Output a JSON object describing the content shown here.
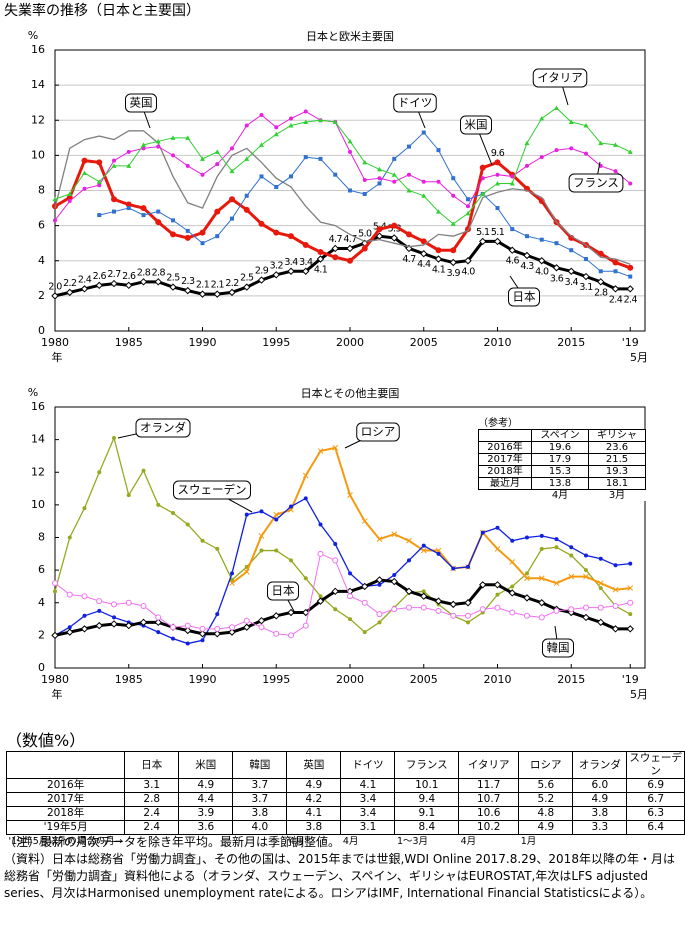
{
  "title": "失業率の推移（日本と主要国）",
  "chart_data": [
    {
      "type": "line",
      "title": "日本と欧米主要国",
      "y_label": "%",
      "x_label": "年",
      "x_note": "5月",
      "x": [
        1980,
        1981,
        1982,
        1983,
        1984,
        1985,
        1986,
        1987,
        1988,
        1989,
        1990,
        1991,
        1992,
        1993,
        1994,
        1995,
        1996,
        1997,
        1998,
        1999,
        2000,
        2001,
        2002,
        2003,
        2004,
        2005,
        2006,
        2007,
        2008,
        2009,
        2010,
        2011,
        2012,
        2013,
        2014,
        2015,
        2016,
        2017,
        2018,
        2019
      ],
      "xlim": [
        1980,
        2020
      ],
      "xticks": [
        1980,
        1985,
        1990,
        1995,
        2000,
        2005,
        2010,
        2015,
        {
          "value": 2019,
          "label": "'19"
        }
      ],
      "ylim": [
        0,
        16
      ],
      "yticks": [
        0,
        2,
        4,
        6,
        8,
        10,
        12,
        14,
        16
      ],
      "grid": true,
      "series": [
        {
          "name": "日本",
          "color": "#000000",
          "width": 3,
          "marker": "diamond",
          "values": [
            2.0,
            2.2,
            2.4,
            2.6,
            2.7,
            2.6,
            2.8,
            2.8,
            2.5,
            2.3,
            2.1,
            2.1,
            2.2,
            2.5,
            2.9,
            3.2,
            3.4,
            3.4,
            4.1,
            4.7,
            4.7,
            5.0,
            5.4,
            5.3,
            4.7,
            4.4,
            4.1,
            3.9,
            4.0,
            5.1,
            5.1,
            4.6,
            4.3,
            4.0,
            3.6,
            3.4,
            3.1,
            2.8,
            2.4,
            2.4
          ],
          "value_labels": [
            "2.0",
            "2.2",
            "2.4",
            "2.6",
            "2.7",
            "2.6",
            "2.8",
            "2.8",
            "2.5",
            "2.3",
            "2.1",
            "2.1",
            "2.2",
            "2.5",
            "2.9",
            "3.2",
            "3.4",
            "3.4",
            "4.1",
            "4.7",
            "4.7",
            "5.0",
            "5.4",
            "5.3",
            "4.7",
            "4.4",
            "4.1",
            "3.9",
            "4.0",
            "5.1",
            "5.1",
            "4.6",
            "4.3",
            "4.0",
            "3.6",
            "3.4",
            "3.1",
            "2.8",
            "2.4",
            "2.4"
          ]
        },
        {
          "name": "米国",
          "color": "#e8180c",
          "width": 3,
          "marker": "circle",
          "values": [
            7.1,
            7.6,
            9.7,
            9.6,
            7.5,
            7.2,
            7.0,
            6.2,
            5.5,
            5.3,
            5.6,
            6.8,
            7.5,
            6.9,
            6.1,
            5.6,
            5.4,
            4.9,
            4.5,
            4.2,
            4.0,
            4.7,
            5.8,
            6.0,
            5.5,
            5.1,
            4.6,
            4.6,
            5.8,
            9.3,
            9.6,
            8.9,
            8.1,
            7.4,
            6.2,
            5.3,
            4.9,
            4.4,
            3.9,
            3.6
          ],
          "value_labels": [
            null,
            null,
            null,
            null,
            null,
            null,
            null,
            null,
            null,
            null,
            null,
            null,
            null,
            null,
            null,
            null,
            null,
            null,
            null,
            null,
            null,
            null,
            null,
            null,
            null,
            null,
            null,
            null,
            null,
            null,
            "9.6",
            null,
            null,
            null,
            null,
            null,
            null,
            null,
            null,
            null
          ]
        },
        {
          "name": "英国",
          "color": "#808080",
          "width": 1.3,
          "marker": "none",
          "values": [
            7.0,
            10.4,
            10.9,
            11.1,
            10.9,
            11.4,
            11.4,
            10.7,
            8.8,
            7.3,
            7.0,
            8.8,
            10.0,
            10.4,
            9.6,
            8.7,
            8.2,
            7.1,
            6.2,
            6.0,
            5.5,
            5.1,
            5.2,
            5.0,
            4.8,
            4.9,
            5.5,
            5.4,
            5.7,
            7.6,
            7.9,
            8.1,
            8.0,
            7.6,
            6.2,
            5.4,
            4.9,
            4.2,
            4.1,
            3.8
          ]
        },
        {
          "name": "ドイツ",
          "color": "#3070d0",
          "width": 1,
          "marker": "square",
          "values": [
            null,
            null,
            null,
            6.6,
            6.8,
            7.0,
            6.6,
            6.8,
            6.3,
            5.7,
            5.0,
            5.4,
            6.4,
            7.7,
            8.8,
            8.2,
            8.8,
            9.9,
            9.8,
            8.9,
            8.0,
            7.8,
            8.4,
            9.8,
            10.5,
            11.3,
            10.3,
            8.7,
            7.5,
            7.8,
            7.0,
            5.8,
            5.4,
            5.2,
            5.0,
            4.6,
            4.1,
            3.4,
            3.4,
            3.1
          ]
        },
        {
          "name": "フランス",
          "color": "#e820e0",
          "width": 1,
          "marker": "circle",
          "values": [
            6.3,
            7.4,
            8.1,
            8.3,
            9.7,
            10.2,
            10.4,
            10.5,
            10.0,
            9.4,
            8.9,
            9.5,
            10.4,
            11.7,
            12.3,
            11.6,
            12.1,
            12.5,
            12.0,
            11.9,
            10.2,
            8.6,
            8.7,
            8.5,
            8.9,
            8.5,
            8.5,
            7.7,
            7.1,
            8.7,
            8.9,
            8.8,
            9.4,
            9.9,
            10.3,
            10.4,
            10.1,
            9.4,
            9.1,
            8.4
          ]
        },
        {
          "name": "イタリア",
          "color": "#30d030",
          "width": 1,
          "marker": "triangle",
          "values": [
            7.5,
            7.8,
            9.0,
            8.5,
            9.4,
            9.4,
            10.6,
            10.8,
            11.0,
            11.0,
            9.8,
            10.2,
            9.1,
            9.8,
            10.6,
            11.2,
            11.7,
            11.9,
            12.0,
            11.9,
            10.8,
            9.6,
            9.2,
            8.9,
            8.0,
            7.7,
            6.8,
            6.1,
            6.7,
            7.8,
            8.4,
            8.4,
            10.7,
            12.1,
            12.7,
            11.9,
            11.7,
            10.7,
            10.6,
            10.2
          ]
        }
      ]
    },
    {
      "type": "line",
      "title": "日本とその他主要国",
      "y_label": "%",
      "x_label": "年",
      "x_note": "5月",
      "x": [
        1980,
        1981,
        1982,
        1983,
        1984,
        1985,
        1986,
        1987,
        1988,
        1989,
        1990,
        1991,
        1992,
        1993,
        1994,
        1995,
        1996,
        1997,
        1998,
        1999,
        2000,
        2001,
        2002,
        2003,
        2004,
        2005,
        2006,
        2007,
        2008,
        2009,
        2010,
        2011,
        2012,
        2013,
        2014,
        2015,
        2016,
        2017,
        2018,
        2019
      ],
      "xlim": [
        1980,
        2020
      ],
      "xticks": [
        1980,
        1985,
        1990,
        1995,
        2000,
        2005,
        2010,
        2015,
        {
          "value": 2019,
          "label": "'19"
        }
      ],
      "ylim": [
        0,
        16
      ],
      "yticks": [
        0,
        2,
        4,
        6,
        8,
        10,
        12,
        14,
        16
      ],
      "grid": false,
      "series": [
        {
          "name": "オランダ",
          "color": "#98a820",
          "width": 1.3,
          "marker": "circle",
          "values": [
            4.7,
            8.0,
            9.8,
            12.0,
            14.1,
            10.6,
            12.1,
            10.0,
            9.5,
            8.8,
            7.8,
            7.3,
            5.4,
            6.2,
            7.2,
            7.2,
            6.6,
            5.5,
            4.4,
            3.6,
            3.0,
            2.2,
            2.8,
            3.7,
            4.6,
            4.7,
            3.9,
            3.2,
            2.8,
            3.4,
            4.5,
            5.0,
            5.8,
            7.3,
            7.4,
            6.9,
            6.0,
            4.9,
            3.8,
            3.3
          ]
        },
        {
          "name": "ロシア",
          "color": "#f59a10",
          "width": 2,
          "marker": "cross",
          "values": [
            null,
            null,
            null,
            null,
            null,
            null,
            null,
            null,
            null,
            null,
            null,
            null,
            5.2,
            5.9,
            8.1,
            9.4,
            9.7,
            11.8,
            13.3,
            13.5,
            10.6,
            9.0,
            7.9,
            8.2,
            7.8,
            7.2,
            7.2,
            6.1,
            6.2,
            8.3,
            7.3,
            6.5,
            5.5,
            5.5,
            5.2,
            5.6,
            5.6,
            5.2,
            4.8,
            4.9
          ]
        },
        {
          "name": "スウェーデン",
          "color": "#1020e0",
          "width": 1.3,
          "marker": "circle",
          "values": [
            2.0,
            2.5,
            3.2,
            3.5,
            3.1,
            2.8,
            2.6,
            2.2,
            1.8,
            1.5,
            1.7,
            3.3,
            5.8,
            9.4,
            9.6,
            9.1,
            9.9,
            10.4,
            8.8,
            7.6,
            5.8,
            5.0,
            5.1,
            5.7,
            6.6,
            7.5,
            7.0,
            6.1,
            6.2,
            8.3,
            8.6,
            7.8,
            8.0,
            8.1,
            7.9,
            7.4,
            6.9,
            6.7,
            6.3,
            6.4
          ]
        },
        {
          "name": "日本",
          "color": "#000000",
          "width": 3,
          "marker": "diamond",
          "values": [
            2.0,
            2.2,
            2.4,
            2.6,
            2.7,
            2.6,
            2.8,
            2.8,
            2.5,
            2.3,
            2.1,
            2.1,
            2.2,
            2.5,
            2.9,
            3.2,
            3.4,
            3.4,
            4.1,
            4.7,
            4.7,
            5.0,
            5.4,
            5.3,
            4.7,
            4.4,
            4.1,
            3.9,
            4.0,
            5.1,
            5.1,
            4.6,
            4.3,
            4.0,
            3.6,
            3.4,
            3.1,
            2.8,
            2.4,
            2.4
          ]
        },
        {
          "name": "韓国",
          "color": "#f070f0",
          "width": 1,
          "marker": "open-circle",
          "values": [
            5.2,
            4.5,
            4.4,
            4.1,
            3.9,
            4.0,
            3.8,
            3.1,
            2.5,
            2.6,
            2.4,
            2.4,
            2.5,
            2.9,
            2.5,
            2.1,
            2.0,
            2.6,
            7.0,
            6.6,
            4.4,
            4.0,
            3.3,
            3.6,
            3.7,
            3.7,
            3.5,
            3.2,
            3.2,
            3.6,
            3.7,
            3.4,
            3.2,
            3.1,
            3.5,
            3.6,
            3.7,
            3.7,
            3.8,
            4.0
          ]
        }
      ]
    }
  ],
  "reference_table": {
    "caption": "（参考）",
    "header": [
      null,
      "スペイン",
      "ギリシャ"
    ],
    "rows": [
      [
        "2016年",
        "19.6",
        "23.6"
      ],
      [
        "2017年",
        "17.9",
        "21.5"
      ],
      [
        "2018年",
        "15.3",
        "19.3"
      ],
      [
        "最近月",
        "13.8",
        "18.1"
      ]
    ],
    "footer": [
      null,
      "4月",
      "3月"
    ]
  },
  "table": {
    "caption": "（数値%）",
    "header": [
      null,
      "日本",
      "米国",
      "韓国",
      "英国",
      "ドイツ",
      "フランス",
      "イタリア",
      "ロシア",
      "オランダ",
      "スウェーデン"
    ],
    "rows": [
      [
        "2016年",
        "3.1",
        "4.9",
        "3.7",
        "4.9",
        "4.1",
        "10.1",
        "11.7",
        "5.6",
        "6.0",
        "6.9"
      ],
      [
        "2017年",
        "2.8",
        "4.4",
        "3.7",
        "4.2",
        "3.4",
        "9.4",
        "10.7",
        "5.2",
        "4.9",
        "6.7"
      ],
      [
        "2018年",
        "2.4",
        "3.9",
        "3.8",
        "4.1",
        "3.4",
        "9.1",
        "10.6",
        "4.8",
        "3.8",
        "6.3"
      ],
      [
        "'19年5月",
        "2.4",
        "3.6",
        "4.0",
        "3.8",
        "3.1",
        "8.4",
        "10.2",
        "4.9",
        "3.3",
        "6.4"
      ]
    ],
    "footer": [
      "'19年5月以外の場合の月→",
      null,
      null,
      null,
      "4月",
      "4月",
      "1〜3月",
      "4月",
      "1月",
      null,
      null
    ]
  },
  "notes": [
    "（注）最新の月次データを除き年平均。最新月は季節調整値。",
    "（資料）日本は総務省「労働力調査」、その他の国は、2015年までは世銀,WDI Online 2017.8.29、2018年以降の年・月は総務省「労働力調査」資料他による（オランダ、スウェーデン、スペイン、ギリシャはEUROSTAT,年次はLFS adjusted series、月次はHarmonised unemployment rateによる。ロシアはIMF, International Financial Statisticsによる）。"
  ]
}
